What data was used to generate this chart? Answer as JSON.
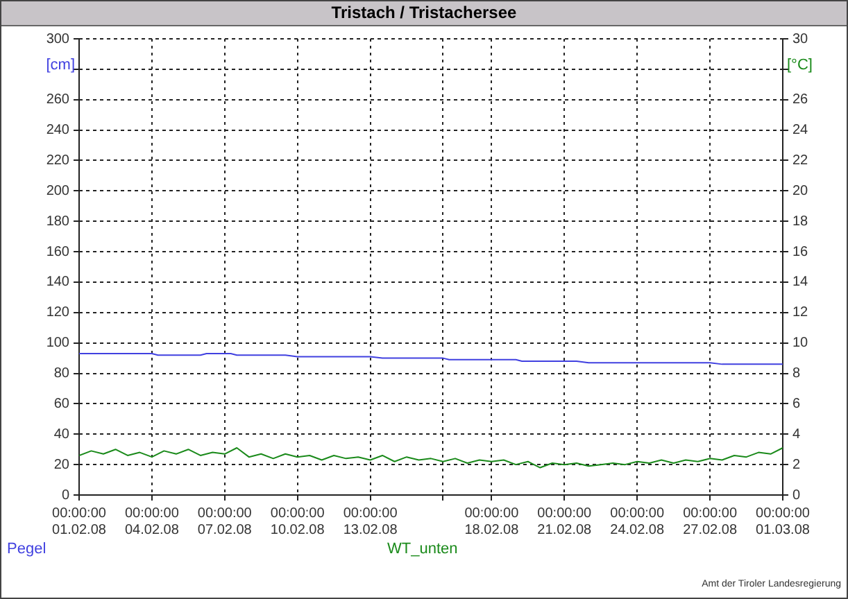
{
  "chart_data": {
    "type": "line",
    "title": "Tristach / Tristachersee",
    "ylabel": "[cm]",
    "y2label": "[°C]",
    "annotations": [
      "Amt der Tiroler Landesregierung"
    ],
    "xlim": [
      "--02-01",
      "--03-01"
    ],
    "xticks": [
      {
        "value": "--02-01",
        "label": "00:00:00\n01.02.08"
      },
      {
        "value": "--02-04",
        "label": "00:00:00\n04.02.08"
      },
      {
        "value": "--02-07",
        "label": "00:00:00\n07.02.08"
      },
      {
        "value": "--02-10",
        "label": "00:00:00\n10.02.08"
      },
      {
        "value": "--02-13",
        "label": "00:00:00\n13.02.08"
      },
      {
        "value": "--02-16",
        "label": null
      },
      {
        "value": "--02-18",
        "label": "00:00:00\n18.02.08"
      },
      {
        "value": "--02-21",
        "label": "00:00:00\n21.02.08"
      },
      {
        "value": "--02-24",
        "label": "00:00:00\n24.02.08"
      },
      {
        "value": "--02-27",
        "label": "00:00:00\n27.02.08"
      },
      {
        "value": "--03-01",
        "label": "00:00:00\n01.03.08"
      }
    ],
    "ylim": [
      0,
      300
    ],
    "yticks": [
      0,
      20,
      40,
      60,
      80,
      100,
      120,
      140,
      160,
      180,
      200,
      220,
      240,
      260,
      {
        "value": 280,
        "label": null
      },
      300
    ],
    "y2lim": [
      0,
      30
    ],
    "y2ticks": [
      0,
      2,
      4,
      6,
      8,
      10,
      12,
      14,
      16,
      18,
      20,
      22,
      24,
      26,
      {
        "value": 28,
        "label": null
      },
      30
    ],
    "grid": true,
    "legend": "bottom",
    "marker": "none",
    "line_style": "solid",
    "series": [
      {
        "name": "Pegel",
        "color": "#4040e0",
        "x": [
          "--02-01T00:00",
          "--02-04T00:00",
          "--02-04T06:00",
          "--02-06T00:00",
          "--02-06T06:00",
          "--02-07T06:00",
          "--02-07T12:00",
          "--02-09T12:00",
          "--02-10T00:00",
          "--02-13T00:00",
          "--02-13T12:00",
          "--02-16T00:00",
          "--02-16T06:00",
          "--02-19T00:00",
          "--02-19T06:00",
          "--02-21T12:00",
          "--02-22T00:00",
          "--02-27T00:00",
          "--02-27T12:00",
          "--03-01T00:00"
        ],
        "values": [
          93,
          93,
          92,
          92,
          93,
          93,
          92,
          92,
          91,
          91,
          90,
          90,
          89,
          89,
          88,
          88,
          87,
          87,
          86,
          86
        ]
      },
      {
        "name": "WT_unten",
        "color": "#1a8a1a",
        "axis": "y2",
        "x": [
          "--02-01T00:00",
          "--02-01T12:00",
          "--02-02T00:00",
          "--02-02T12:00",
          "--02-03T00:00",
          "--02-03T12:00",
          "--02-04T00:00",
          "--02-04T12:00",
          "--02-05T00:00",
          "--02-05T12:00",
          "--02-06T00:00",
          "--02-06T12:00",
          "--02-07T00:00",
          "--02-07T12:00",
          "--02-08T00:00",
          "--02-08T12:00",
          "--02-09T00:00",
          "--02-09T12:00",
          "--02-10T00:00",
          "--02-10T12:00",
          "--02-11T00:00",
          "--02-11T12:00",
          "--02-12T00:00",
          "--02-12T12:00",
          "--02-13T00:00",
          "--02-13T12:00",
          "--02-14T00:00",
          "--02-14T12:00",
          "--02-15T00:00",
          "--02-15T12:00",
          "--02-16T00:00",
          "--02-16T12:00",
          "--02-17T00:00",
          "--02-17T12:00",
          "--02-18T00:00",
          "--02-18T12:00",
          "--02-19T00:00",
          "--02-19T12:00",
          "--02-20T00:00",
          "--02-20T12:00",
          "--02-21T00:00",
          "--02-21T12:00",
          "--02-22T00:00",
          "--02-22T12:00",
          "--02-23T00:00",
          "--02-23T12:00",
          "--02-24T00:00",
          "--02-24T12:00",
          "--02-25T00:00",
          "--02-25T12:00",
          "--02-26T00:00",
          "--02-26T12:00",
          "--02-27T00:00",
          "--02-27T12:00",
          "--02-28T00:00",
          "--02-28T12:00",
          "--02-29T00:00",
          "--02-29T12:00",
          "--03-01T00:00"
        ],
        "values": [
          2.6,
          2.9,
          2.7,
          3.0,
          2.6,
          2.8,
          2.5,
          2.9,
          2.7,
          3.0,
          2.6,
          2.8,
          2.7,
          3.1,
          2.5,
          2.7,
          2.4,
          2.7,
          2.5,
          2.6,
          2.3,
          2.6,
          2.4,
          2.5,
          2.3,
          2.6,
          2.2,
          2.5,
          2.3,
          2.4,
          2.2,
          2.4,
          2.1,
          2.3,
          2.2,
          2.3,
          2.0,
          2.2,
          1.8,
          2.1,
          2.0,
          2.1,
          1.9,
          2.0,
          2.1,
          2.0,
          2.2,
          2.1,
          2.3,
          2.1,
          2.3,
          2.2,
          2.4,
          2.3,
          2.6,
          2.5,
          2.8,
          2.7,
          3.1
        ]
      }
    ]
  }
}
